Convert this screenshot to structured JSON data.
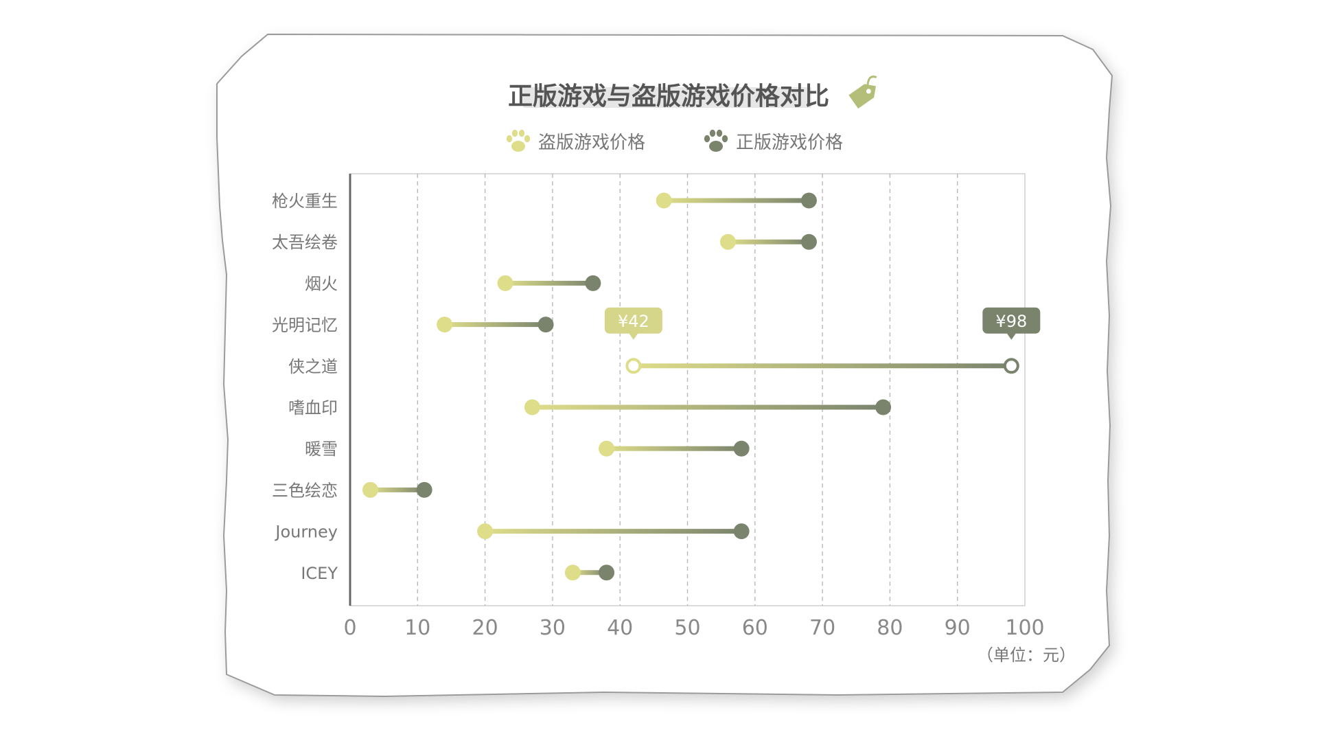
{
  "colors": {
    "pirate": "#dedd8a",
    "official": "#7a846d",
    "title_text": "#555555",
    "label_text": "#777777",
    "tick_text": "#888888",
    "tag_icon": "#b4be78"
  },
  "icons": {
    "title_tag": "price-tag-icon",
    "legend_pirate": "paw-icon",
    "legend_official": "paw-icon"
  },
  "chart_data": {
    "type": "dumbbell",
    "title": "正版游戏与盗版游戏价格对比",
    "unit_label": "（单位：元）",
    "categories": [
      "枪火重生",
      "太吾绘卷",
      "烟火",
      "光明记忆",
      "侠之道",
      "嗜血印",
      "暖雪",
      "三色绘恋",
      "Journey",
      "ICEY"
    ],
    "series": [
      {
        "name": "盗版游戏价格",
        "values": [
          46.5,
          56,
          23,
          14,
          42,
          27,
          38,
          3,
          20,
          33
        ]
      },
      {
        "name": "正版游戏价格",
        "values": [
          68,
          68,
          36,
          29,
          98,
          79,
          58,
          11,
          58,
          38
        ]
      }
    ],
    "xlim": [
      0,
      100
    ],
    "xticks": [
      "0",
      "10",
      "20",
      "30",
      "40",
      "50",
      "60",
      "70",
      "80",
      "90",
      "100"
    ],
    "grid": "vertical dashed",
    "legend_position": "top-center",
    "annotations": [
      {
        "category": "侠之道",
        "series": "盗版游戏价格",
        "text": "¥42"
      },
      {
        "category": "侠之道",
        "series": "正版游戏价格",
        "text": "¥98"
      }
    ]
  }
}
